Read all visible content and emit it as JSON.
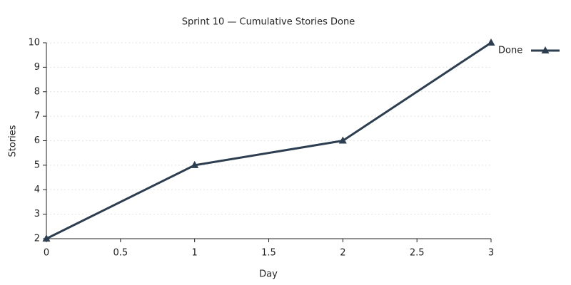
{
  "chart_data": {
    "type": "line",
    "title": "Sprint 10 — Cumulative Stories Done",
    "x_label": "Day",
    "y_label": "Stories",
    "x": [
      0,
      1,
      2,
      3
    ],
    "series": [
      {
        "name": "Done",
        "color": "#2d3e50",
        "marker": "triangle",
        "values": [
          2,
          5,
          6,
          10
        ]
      }
    ],
    "xlim": [
      0,
      3
    ],
    "xticks": [
      0,
      0.5,
      1,
      1.5,
      2,
      2.5,
      3
    ],
    "ylim": [
      2,
      10
    ],
    "yticks": [
      2,
      3,
      4,
      5,
      6,
      7,
      8,
      9,
      10
    ],
    "grid": true,
    "legend": "right"
  }
}
